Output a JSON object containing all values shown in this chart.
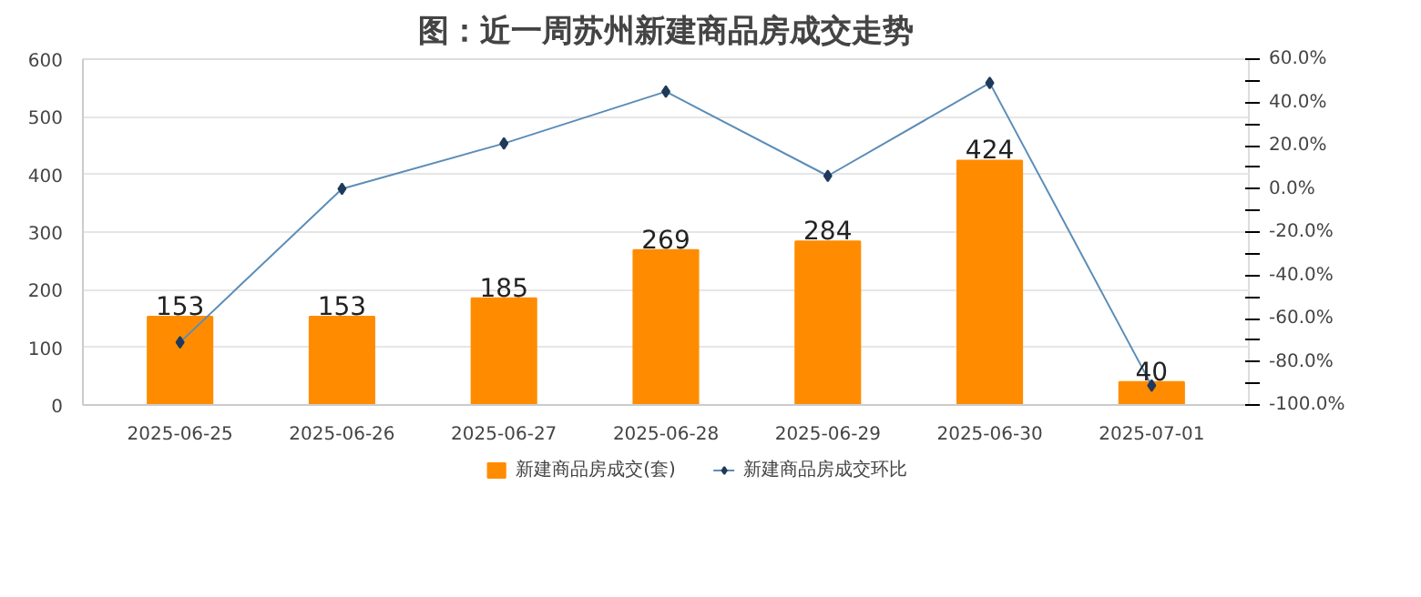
{
  "chart_data": {
    "type": "bar",
    "title": "图：近一周苏州新建商品房成交走势",
    "categories": [
      "2025-06-25",
      "2025-06-26",
      "2025-06-27",
      "2025-06-28",
      "2025-06-29",
      "2025-06-30",
      "2025-07-01"
    ],
    "series": [
      {
        "name": "新建商品房成交(套)",
        "color": "#ff8c00",
        "values": [
          153,
          153,
          185,
          269,
          284,
          424,
          40
        ],
        "value_labels": [
          "153",
          "153",
          "185",
          "269",
          "284",
          "424",
          "40"
        ]
      },
      {
        "name": "新建商品房成交环比",
        "type": "line",
        "axis": "y2",
        "color": "#5b8db8",
        "marker": "diamond",
        "values": [
          -71,
          0,
          21,
          45,
          6,
          49,
          -91
        ]
      }
    ],
    "ylim": [
      0,
      600
    ],
    "yticks": [
      0,
      100,
      200,
      300,
      400,
      500,
      600
    ],
    "y2lim": [
      -100,
      60
    ],
    "y2ticks": [
      {
        "value": -100,
        "label": "-100.0%"
      },
      {
        "value": -90,
        "label": null
      },
      {
        "value": -80,
        "label": "-80.0%"
      },
      {
        "value": -70,
        "label": null
      },
      {
        "value": -60,
        "label": "-60.0%"
      },
      {
        "value": -50,
        "label": null
      },
      {
        "value": -40,
        "label": "-40.0%"
      },
      {
        "value": -30,
        "label": null
      },
      {
        "value": -20,
        "label": "-20.0%"
      },
      {
        "value": -10,
        "label": null
      },
      {
        "value": 0,
        "label": "0.0%"
      },
      {
        "value": 10,
        "label": null
      },
      {
        "value": 20,
        "label": "20.0%"
      },
      {
        "value": 30,
        "label": null
      },
      {
        "value": 40,
        "label": "40.0%"
      },
      {
        "value": 50,
        "label": null
      },
      {
        "value": 60,
        "label": "60.0%"
      }
    ],
    "grid": "y",
    "legend": "bottom"
  }
}
